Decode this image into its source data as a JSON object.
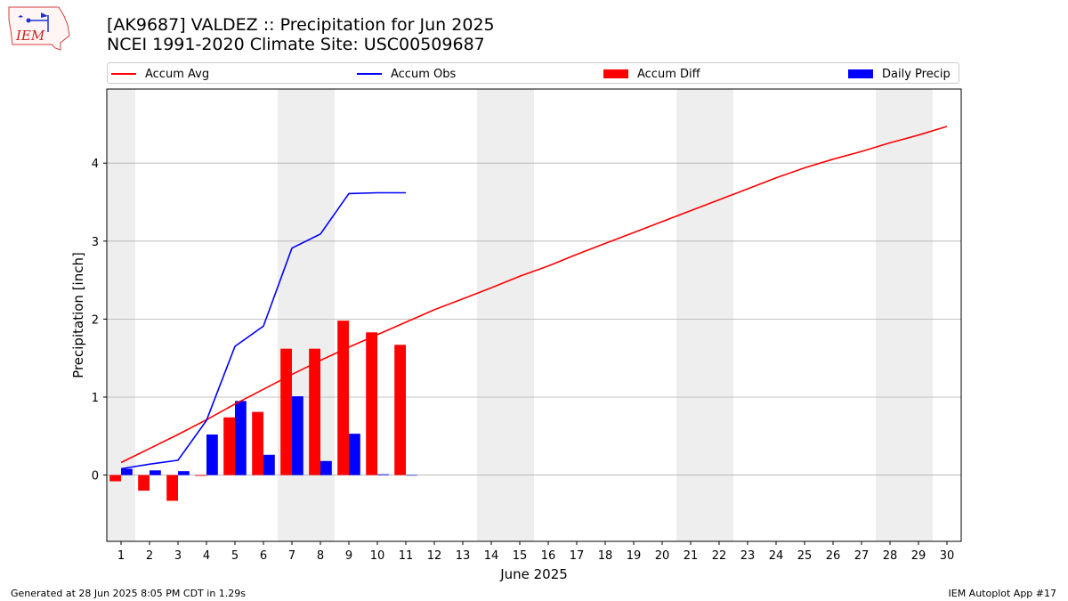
{
  "header": {
    "title": "[AK9687] VALDEZ :: Precipitation for Jun 2025",
    "subtitle": "NCEI 1991-2020 Climate Site: USC00509687",
    "logo_text": "IEM"
  },
  "legend": {
    "placement": "top",
    "items": [
      {
        "label": "Accum Avg",
        "kind": "line",
        "color": "#ff0000"
      },
      {
        "label": "Accum Obs",
        "kind": "line",
        "color": "#0000ff"
      },
      {
        "label": "Accum Diff",
        "kind": "bar",
        "color": "#ff0000"
      },
      {
        "label": "Daily Precip",
        "kind": "bar",
        "color": "#0000ff"
      }
    ]
  },
  "footer": {
    "left": "Generated at 28 Jun 2025 8:05 PM CDT in 1.29s",
    "right": "IEM Autoplot App #17"
  },
  "chart_data": {
    "type": "bar",
    "title": "[AK9687] VALDEZ :: Precipitation for Jun 2025",
    "xlabel": "June 2025",
    "ylabel": "Precipitation [inch]",
    "xlim": [
      0.5,
      30.5
    ],
    "ylim": [
      -0.85,
      4.95
    ],
    "x_ticks": [
      1,
      2,
      3,
      4,
      5,
      6,
      7,
      8,
      9,
      10,
      11,
      12,
      13,
      14,
      15,
      16,
      17,
      18,
      19,
      20,
      21,
      22,
      23,
      24,
      25,
      26,
      27,
      28,
      29,
      30
    ],
    "y_ticks": [
      0,
      1,
      2,
      3,
      4
    ],
    "grid": "horizontal",
    "weekend_shading": [
      [
        0.5,
        1.5
      ],
      [
        6.5,
        8.5
      ],
      [
        13.5,
        15.5
      ],
      [
        20.5,
        22.5
      ],
      [
        27.5,
        29.5
      ]
    ],
    "colors": {
      "avg": "#ff0000",
      "obs": "#0000ff",
      "diff": "#ff0000",
      "daily": "#0000ff",
      "shade": "#eeeeee",
      "grid": "#b0b0b0"
    },
    "series": [
      {
        "name": "Accum Avg",
        "kind": "line",
        "x": [
          1,
          2,
          3,
          4,
          5,
          6,
          7,
          8,
          9,
          10,
          11,
          12,
          13,
          14,
          15,
          16,
          17,
          18,
          19,
          20,
          21,
          22,
          23,
          24,
          25,
          26,
          27,
          28,
          29,
          30
        ],
        "values": [
          0.16,
          0.34,
          0.52,
          0.71,
          0.91,
          1.1,
          1.29,
          1.47,
          1.64,
          1.8,
          1.96,
          2.12,
          2.26,
          2.4,
          2.55,
          2.68,
          2.83,
          2.97,
          3.11,
          3.25,
          3.39,
          3.53,
          3.67,
          3.81,
          3.94,
          4.05,
          4.15,
          4.26,
          4.36,
          4.47
        ]
      },
      {
        "name": "Accum Obs",
        "kind": "line",
        "x": [
          1,
          2,
          3,
          4,
          5,
          6,
          7,
          8,
          9,
          10,
          11
        ],
        "values": [
          0.08,
          0.14,
          0.19,
          0.7,
          1.65,
          1.91,
          2.91,
          3.09,
          3.61,
          3.62,
          3.62
        ]
      },
      {
        "name": "Accum Diff",
        "kind": "bar",
        "x": [
          1,
          2,
          3,
          4,
          5,
          6,
          7,
          8,
          9,
          10,
          11
        ],
        "values": [
          -0.08,
          -0.2,
          -0.33,
          -0.01,
          0.74,
          0.81,
          1.62,
          1.62,
          1.98,
          1.83,
          1.67
        ]
      },
      {
        "name": "Daily Precip",
        "kind": "bar",
        "x": [
          1,
          2,
          3,
          4,
          5,
          6,
          7,
          8,
          9,
          10,
          11
        ],
        "values": [
          0.08,
          0.06,
          0.05,
          0.52,
          0.95,
          0.26,
          1.01,
          0.18,
          0.53,
          0.01,
          0.0
        ]
      }
    ]
  }
}
